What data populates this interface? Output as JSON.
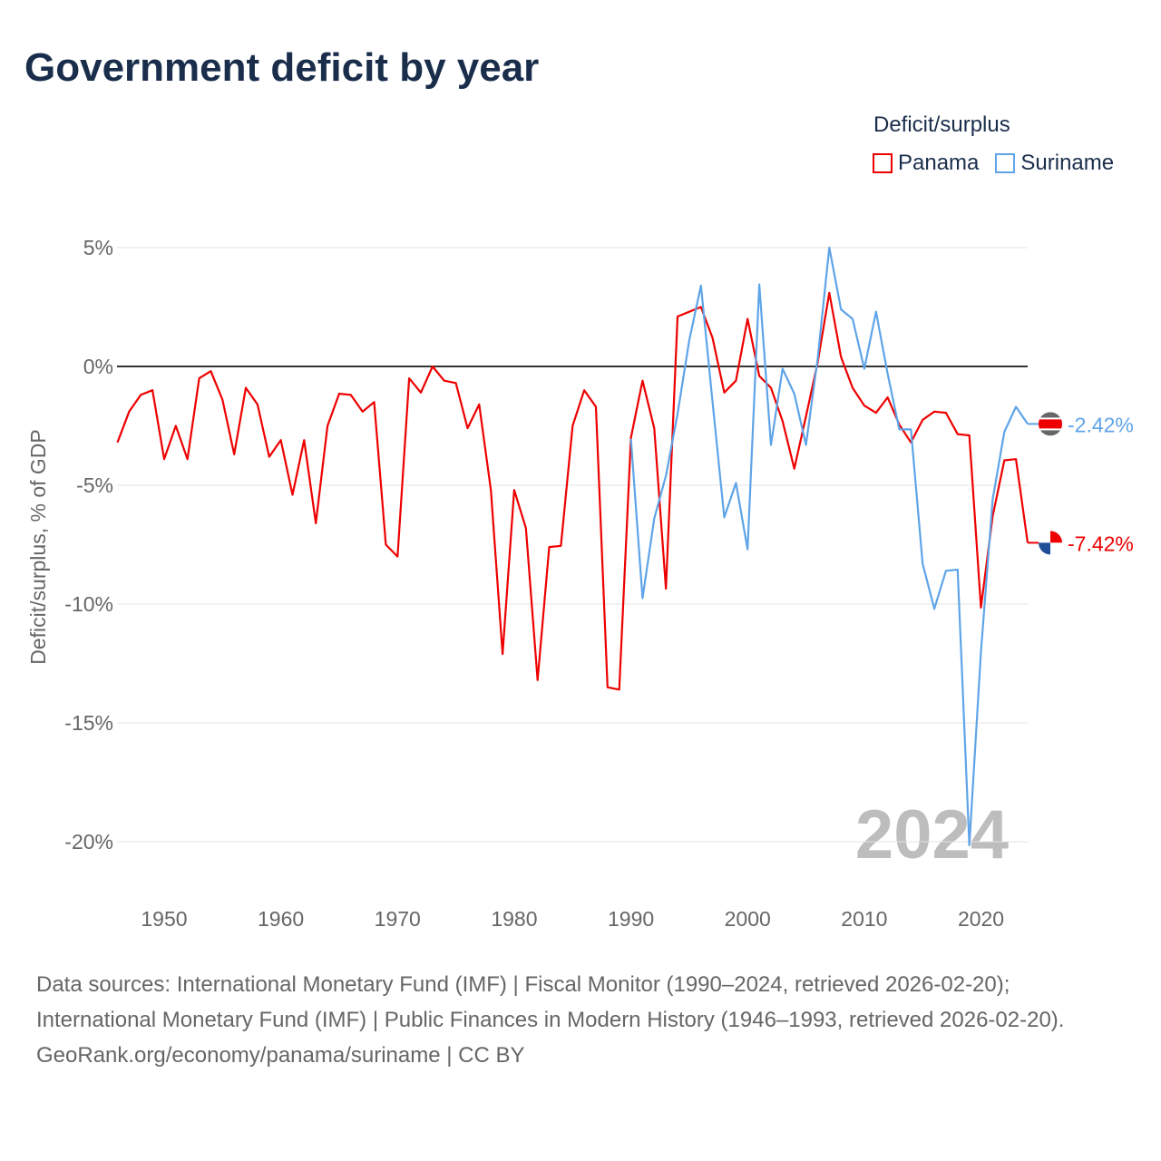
{
  "title": "Government deficit by year",
  "legend": {
    "title": "Deficit/surplus",
    "items": [
      {
        "name": "Panama",
        "color": "#ee0000"
      },
      {
        "name": "Suriname",
        "color": "#5fa4e8"
      }
    ]
  },
  "year_watermark": "2024",
  "chart_data": {
    "type": "line",
    "ylabel": "Deficit/surplus, % of GDP",
    "xlabel": "",
    "xlim": [
      1946,
      2024
    ],
    "ylim": [
      -20,
      5
    ],
    "grid": true,
    "xticks": [
      1950,
      1960,
      1970,
      1980,
      1990,
      2000,
      2010,
      2020
    ],
    "xtick_labels": [
      "1950",
      "1960",
      "1970",
      "1980",
      "1990",
      "2000",
      "2010",
      "2020"
    ],
    "yticks": [
      5,
      0,
      -5,
      -10,
      -15,
      -20
    ],
    "ytick_labels": [
      "5%",
      "0%",
      "-5%",
      "-10%",
      "-15%",
      "-20%"
    ],
    "legend_position": "top-right",
    "series": [
      {
        "name": "Panama",
        "color": "#ee0000",
        "end_label": "-7.42%",
        "start_year": 1946,
        "values": [
          -3.2,
          -1.9,
          -1.2,
          -1.0,
          -3.9,
          -2.5,
          -3.9,
          -0.5,
          -0.2,
          -1.4,
          -3.7,
          -0.9,
          -1.6,
          -3.8,
          -3.1,
          -5.4,
          -3.1,
          -6.6,
          -2.5,
          -1.15,
          -1.2,
          -1.9,
          -1.5,
          -7.5,
          -8.0,
          -0.5,
          -1.1,
          0.0,
          -0.6,
          -0.7,
          -2.6,
          -1.6,
          -5.2,
          -12.1,
          -5.2,
          -6.8,
          -13.2,
          -7.6,
          -7.55,
          -2.5,
          -1.0,
          -1.7,
          -13.5,
          -13.6,
          -3.0,
          -0.6,
          -2.6,
          -9.35,
          2.1,
          2.3,
          2.5,
          1.2,
          -1.1,
          -0.6,
          2.0,
          -0.4,
          -0.9,
          -2.3,
          -4.3,
          -2.1,
          0.15,
          3.1,
          0.4,
          -0.9,
          -1.65,
          -1.95,
          -1.3,
          -2.45,
          -3.2,
          -2.25,
          -1.9,
          -1.95,
          -2.85,
          -2.9,
          -10.15,
          -6.3,
          -3.95,
          -3.9,
          -7.42
        ]
      },
      {
        "name": "Suriname",
        "color": "#5fa4e8",
        "end_label": "-2.42%",
        "start_year": 1990,
        "values": [
          -3.05,
          -9.75,
          -6.4,
          -4.6,
          -2.0,
          1.1,
          3.4,
          -1.5,
          -6.35,
          -4.9,
          -7.7,
          3.45,
          -3.3,
          -0.1,
          -1.15,
          -3.3,
          0.3,
          5.0,
          2.4,
          2.0,
          -0.1,
          2.3,
          -0.3,
          -2.65,
          -2.65,
          -8.3,
          -10.2,
          -8.6,
          -8.55,
          -20.15,
          -12.0,
          -5.6,
          -2.75,
          -1.7,
          -2.42
        ]
      }
    ]
  },
  "footer": {
    "sources": "Data sources: International Monetary Fund (IMF) | Fiscal Monitor (1990–2024, retrieved 2026-02-20); International Monetary Fund (IMF) | Public Finances in Modern History (1946–1993, retrieved 2026-02-20).",
    "credit": "GeoRank.org/economy/panama/suriname | CC BY"
  }
}
